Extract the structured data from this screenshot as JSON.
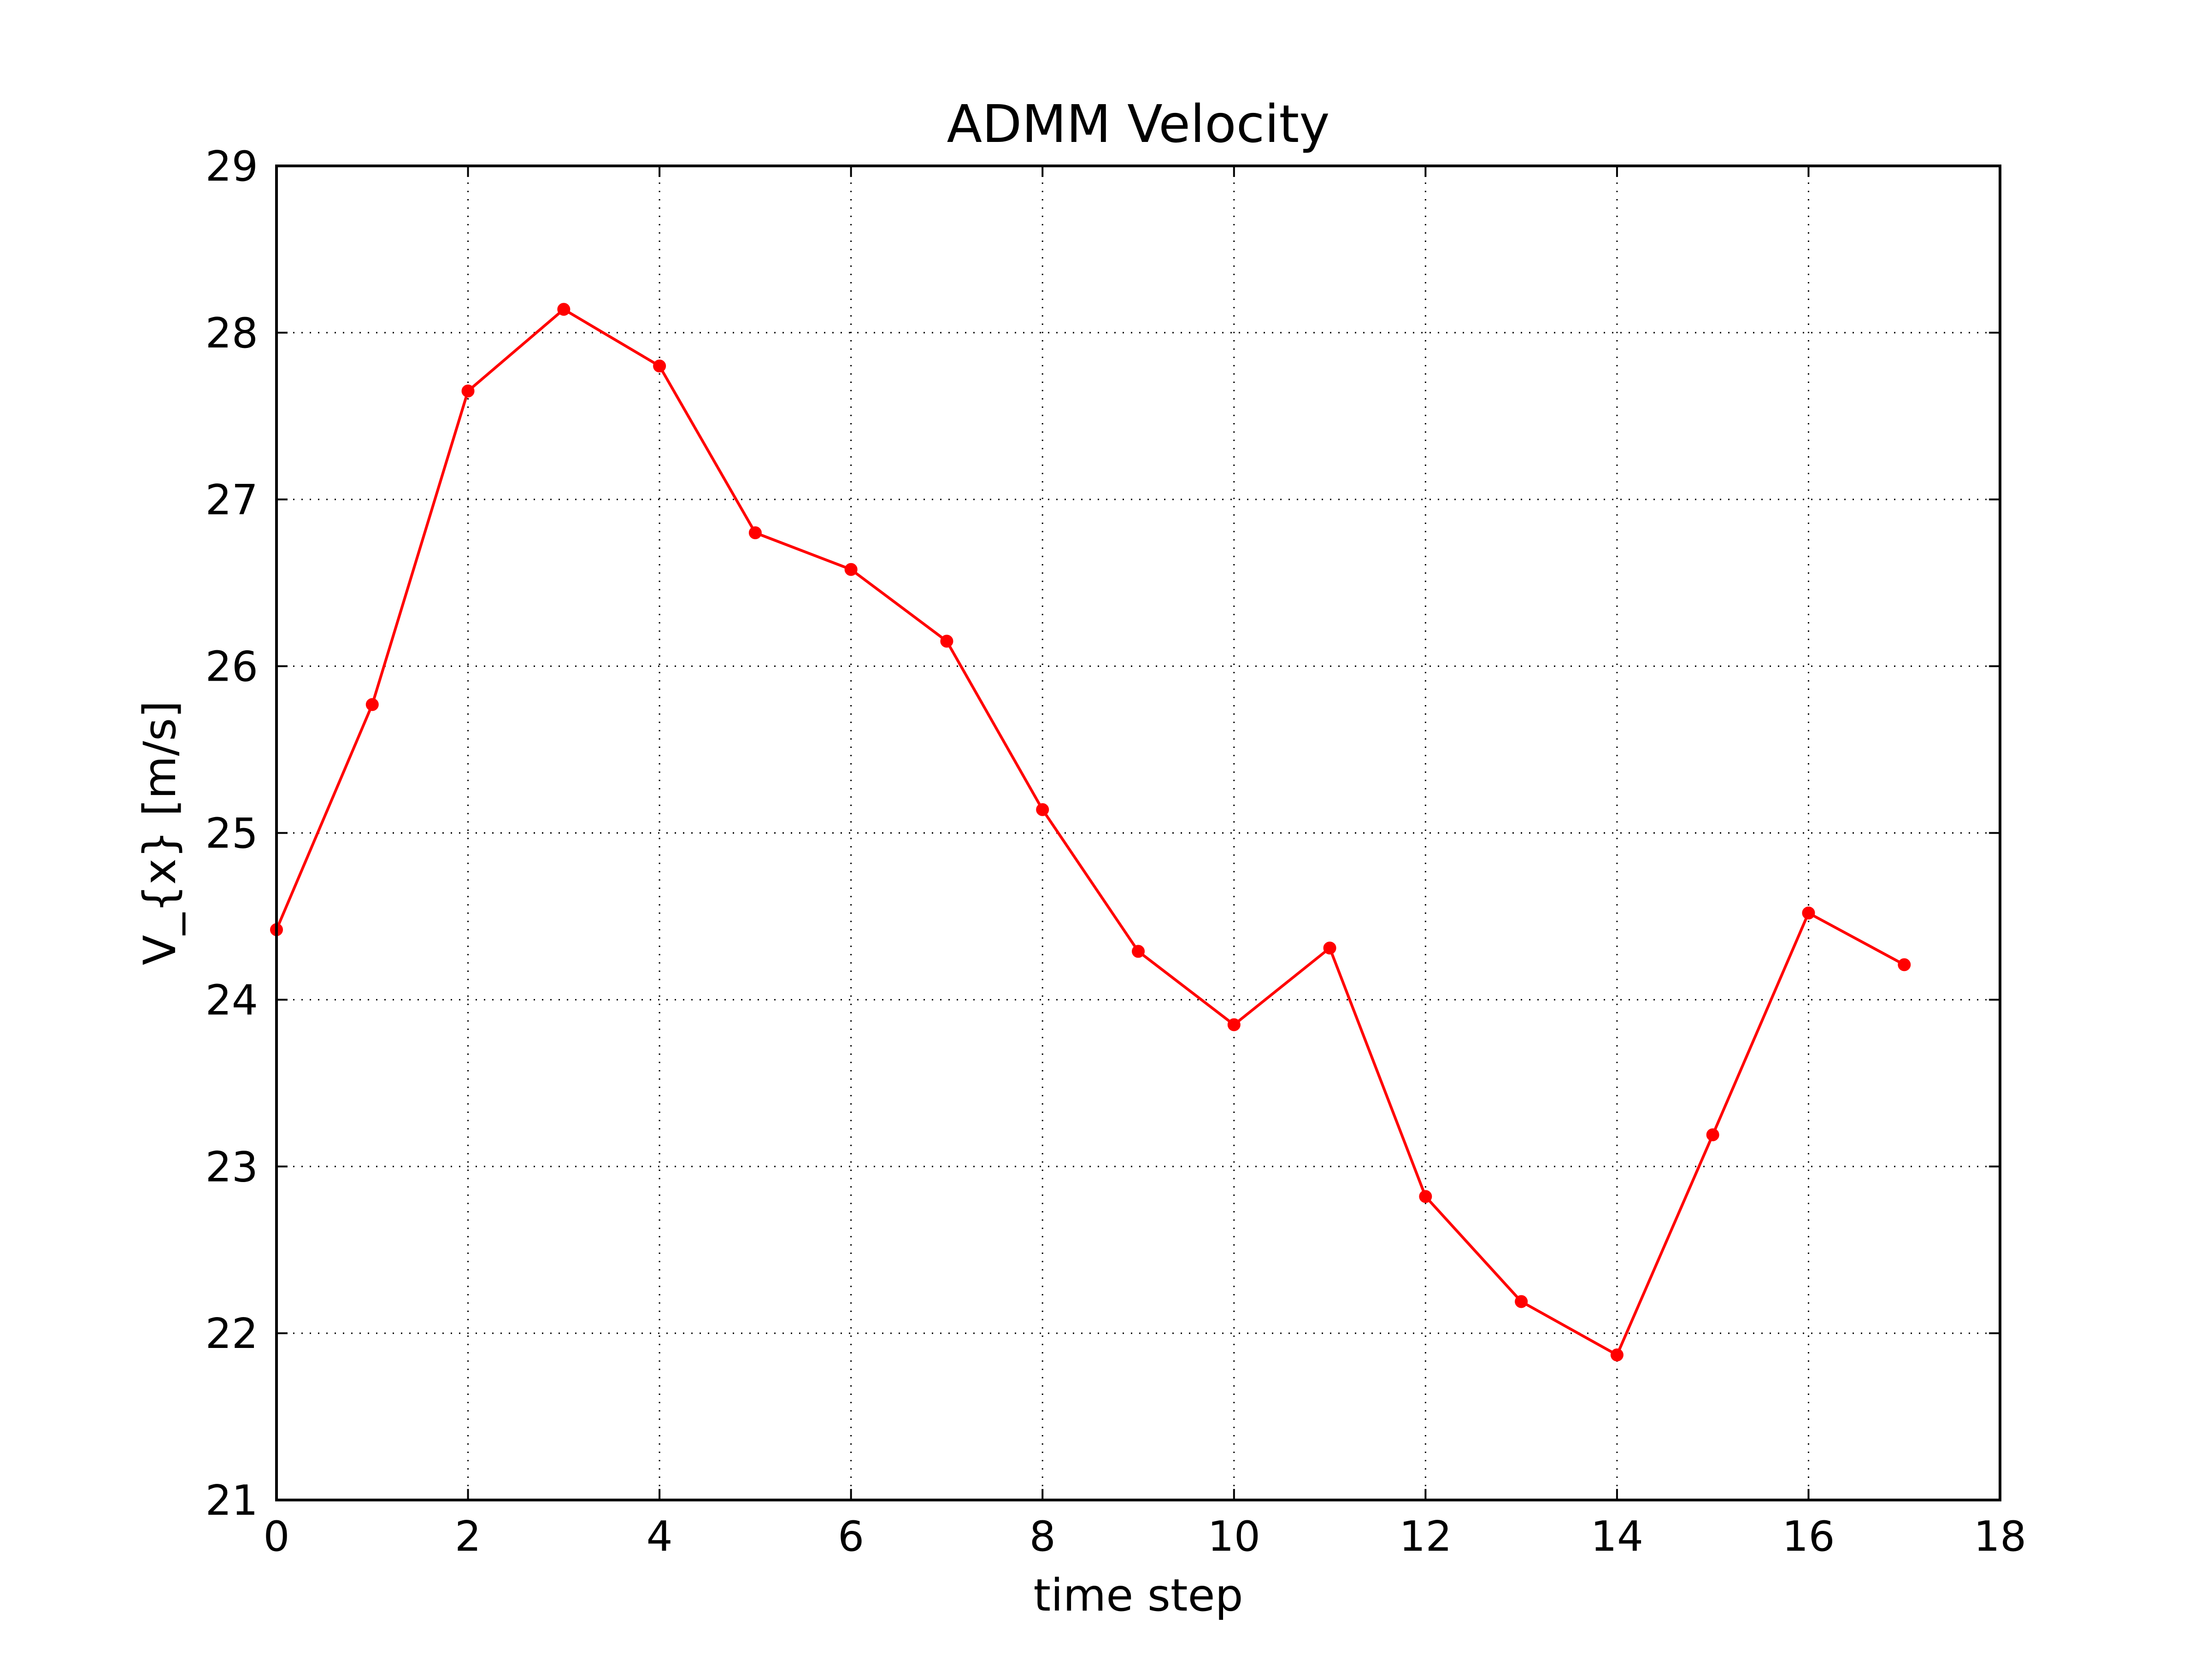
{
  "chart_data": {
    "type": "line",
    "title": "ADMM Velocity",
    "xlabel": "time step",
    "ylabel": "V_{x} [m/s]",
    "xlim": [
      0,
      18
    ],
    "ylim": [
      21,
      29
    ],
    "xticks": [
      0,
      2,
      4,
      6,
      8,
      10,
      12,
      14,
      16,
      18
    ],
    "yticks": [
      21,
      22,
      23,
      24,
      25,
      26,
      27,
      28,
      29
    ],
    "grid": true,
    "grid_style": "dotted",
    "series": [
      {
        "color": "#ff0000",
        "marker": "circle",
        "x": [
          0,
          1,
          2,
          3,
          4,
          5,
          6,
          7,
          8,
          9,
          10,
          11,
          12,
          13,
          14,
          15,
          16,
          17
        ],
        "values": [
          24.42,
          25.77,
          27.65,
          28.14,
          27.8,
          26.8,
          26.58,
          26.15,
          25.14,
          24.29,
          23.85,
          24.31,
          22.82,
          22.19,
          21.87,
          23.19,
          24.52,
          24.21
        ]
      }
    ]
  }
}
